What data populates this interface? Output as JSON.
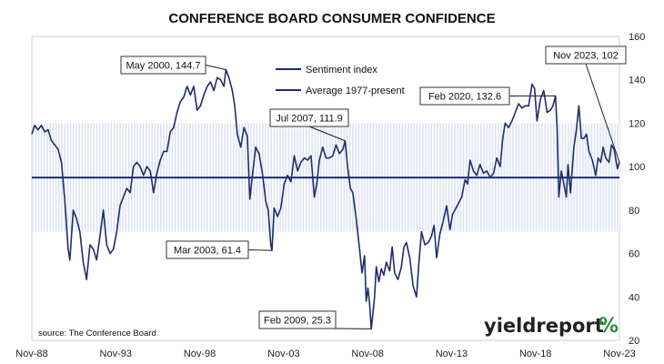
{
  "chart_data": {
    "type": "line",
    "title": "CONFERENCE BOARD CONSUMER CONFIDENCE",
    "xlabel": "",
    "ylabel": "",
    "ylim": [
      20,
      160
    ],
    "y_ticks": [
      "20",
      "40",
      "60",
      "80",
      "100",
      "120",
      "140",
      "160"
    ],
    "x_ticks": [
      "Nov-88",
      "Nov-93",
      "Nov-98",
      "Nov-03",
      "Nov-08",
      "Nov-13",
      "Nov-18",
      "Nov-23"
    ],
    "shaded_band": [
      70,
      120
    ],
    "grid": "horizontal shaded band 70-120",
    "legend_position": "top-center",
    "series": [
      {
        "name": "Sentiment index",
        "color": "#1f2d6e",
        "points": [
          [
            1988.83,
            115
          ],
          [
            1989.0,
            119
          ],
          [
            1989.2,
            117
          ],
          [
            1989.4,
            119
          ],
          [
            1989.6,
            116
          ],
          [
            1989.8,
            117
          ],
          [
            1990.0,
            112
          ],
          [
            1990.2,
            110
          ],
          [
            1990.4,
            108
          ],
          [
            1990.6,
            102
          ],
          [
            1990.8,
            84
          ],
          [
            1991.0,
            62
          ],
          [
            1991.1,
            57
          ],
          [
            1991.3,
            80
          ],
          [
            1991.5,
            76
          ],
          [
            1991.7,
            70
          ],
          [
            1991.9,
            56
          ],
          [
            1992.1,
            48
          ],
          [
            1992.3,
            64
          ],
          [
            1992.5,
            62
          ],
          [
            1992.7,
            57
          ],
          [
            1992.9,
            68
          ],
          [
            1993.1,
            80
          ],
          [
            1993.3,
            64
          ],
          [
            1993.5,
            60
          ],
          [
            1993.7,
            62
          ],
          [
            1993.9,
            70
          ],
          [
            1994.1,
            82
          ],
          [
            1994.3,
            86
          ],
          [
            1994.5,
            90
          ],
          [
            1994.7,
            88
          ],
          [
            1994.9,
            100
          ],
          [
            1995.1,
            102
          ],
          [
            1995.3,
            100
          ],
          [
            1995.5,
            96
          ],
          [
            1995.7,
            100
          ],
          [
            1995.9,
            98
          ],
          [
            1996.1,
            88
          ],
          [
            1996.3,
            97
          ],
          [
            1996.5,
            103
          ],
          [
            1996.7,
            107
          ],
          [
            1996.9,
            107
          ],
          [
            1997.1,
            116
          ],
          [
            1997.3,
            118
          ],
          [
            1997.5,
            125
          ],
          [
            1997.7,
            130
          ],
          [
            1997.9,
            132
          ],
          [
            1998.1,
            137
          ],
          [
            1998.3,
            133
          ],
          [
            1998.5,
            137
          ],
          [
            1998.7,
            126
          ],
          [
            1998.9,
            128
          ],
          [
            1999.1,
            133
          ],
          [
            1999.3,
            137
          ],
          [
            1999.5,
            139
          ],
          [
            1999.7,
            135
          ],
          [
            1999.9,
            141
          ],
          [
            2000.1,
            140
          ],
          [
            2000.3,
            137
          ],
          [
            2000.42,
            144.7
          ],
          [
            2000.6,
            141
          ],
          [
            2000.8,
            135
          ],
          [
            2000.95,
            128
          ],
          [
            2001.1,
            115
          ],
          [
            2001.3,
            109
          ],
          [
            2001.5,
            118
          ],
          [
            2001.7,
            114
          ],
          [
            2001.85,
            85
          ],
          [
            2002.0,
            96
          ],
          [
            2002.2,
            109
          ],
          [
            2002.4,
            106
          ],
          [
            2002.6,
            97
          ],
          [
            2002.8,
            84
          ],
          [
            2002.95,
            80
          ],
          [
            2003.1,
            64
          ],
          [
            2003.17,
            61.4
          ],
          [
            2003.3,
            81
          ],
          [
            2003.5,
            77
          ],
          [
            2003.7,
            81
          ],
          [
            2003.9,
            92
          ],
          [
            2004.1,
            96
          ],
          [
            2004.3,
            93
          ],
          [
            2004.5,
            105
          ],
          [
            2004.7,
            98
          ],
          [
            2004.9,
            102
          ],
          [
            2005.1,
            104
          ],
          [
            2005.3,
            103
          ],
          [
            2005.5,
            105
          ],
          [
            2005.7,
            86
          ],
          [
            2005.85,
            92
          ],
          [
            2006.0,
            103
          ],
          [
            2006.2,
            109
          ],
          [
            2006.4,
            104
          ],
          [
            2006.6,
            104
          ],
          [
            2006.8,
            105
          ],
          [
            2007.0,
            110
          ],
          [
            2007.2,
            106
          ],
          [
            2007.4,
            108
          ],
          [
            2007.54,
            111.9
          ],
          [
            2007.7,
            99
          ],
          [
            2007.85,
            90
          ],
          [
            2008.0,
            88
          ],
          [
            2008.2,
            76
          ],
          [
            2008.4,
            62
          ],
          [
            2008.55,
            51
          ],
          [
            2008.7,
            59
          ],
          [
            2008.8,
            38
          ],
          [
            2008.9,
            44
          ],
          [
            2009.0,
            37
          ],
          [
            2009.1,
            25.3
          ],
          [
            2009.3,
            40
          ],
          [
            2009.4,
            54
          ],
          [
            2009.55,
            47
          ],
          [
            2009.7,
            53
          ],
          [
            2009.85,
            50
          ],
          [
            2010.0,
            56
          ],
          [
            2010.2,
            52
          ],
          [
            2010.35,
            63
          ],
          [
            2010.5,
            51
          ],
          [
            2010.7,
            48
          ],
          [
            2010.9,
            54
          ],
          [
            2011.05,
            63
          ],
          [
            2011.2,
            65
          ],
          [
            2011.4,
            58
          ],
          [
            2011.6,
            45
          ],
          [
            2011.8,
            40
          ],
          [
            2011.95,
            56
          ],
          [
            2012.1,
            70
          ],
          [
            2012.3,
            64
          ],
          [
            2012.5,
            65
          ],
          [
            2012.7,
            68
          ],
          [
            2012.85,
            73
          ],
          [
            2013.0,
            58
          ],
          [
            2013.2,
            69
          ],
          [
            2013.4,
            75
          ],
          [
            2013.6,
            82
          ],
          [
            2013.8,
            71
          ],
          [
            2013.95,
            78
          ],
          [
            2014.1,
            80
          ],
          [
            2014.3,
            83
          ],
          [
            2014.5,
            86
          ],
          [
            2014.7,
            94
          ],
          [
            2014.85,
            92
          ],
          [
            2015.0,
            103
          ],
          [
            2015.2,
            98
          ],
          [
            2015.4,
            96
          ],
          [
            2015.6,
            101
          ],
          [
            2015.8,
            97
          ],
          [
            2016.0,
            98
          ],
          [
            2016.2,
            95
          ],
          [
            2016.4,
            97
          ],
          [
            2016.6,
            104
          ],
          [
            2016.8,
            100
          ],
          [
            2016.95,
            113
          ],
          [
            2017.1,
            120
          ],
          [
            2017.3,
            118
          ],
          [
            2017.5,
            121
          ],
          [
            2017.7,
            125
          ],
          [
            2017.9,
            129
          ],
          [
            2018.1,
            127
          ],
          [
            2018.3,
            128
          ],
          [
            2018.5,
            128
          ],
          [
            2018.7,
            138
          ],
          [
            2018.85,
            136
          ],
          [
            2019.0,
            121
          ],
          [
            2019.2,
            131
          ],
          [
            2019.4,
            135
          ],
          [
            2019.6,
            125
          ],
          [
            2019.8,
            126
          ],
          [
            2019.95,
            128
          ],
          [
            2020.1,
            132.6
          ],
          [
            2020.2,
            118
          ],
          [
            2020.3,
            86
          ],
          [
            2020.45,
            98
          ],
          [
            2020.6,
            92
          ],
          [
            2020.75,
            86
          ],
          [
            2020.85,
            101
          ],
          [
            2021.0,
            88
          ],
          [
            2021.2,
            109
          ],
          [
            2021.35,
            117
          ],
          [
            2021.5,
            128
          ],
          [
            2021.65,
            113
          ],
          [
            2021.8,
            113
          ],
          [
            2021.95,
            115
          ],
          [
            2022.1,
            107
          ],
          [
            2022.3,
            103
          ],
          [
            2022.5,
            96
          ],
          [
            2022.65,
            104
          ],
          [
            2022.8,
            102
          ],
          [
            2022.95,
            109
          ],
          [
            2023.1,
            104
          ],
          [
            2023.3,
            102
          ],
          [
            2023.45,
            110
          ],
          [
            2023.6,
            108
          ],
          [
            2023.8,
            99
          ],
          [
            2023.92,
            102
          ]
        ]
      },
      {
        "name": "Average 1977-present",
        "color": "#1f2d6e",
        "points": [
          [
            1988.83,
            95
          ],
          [
            2023.92,
            95
          ]
        ]
      }
    ],
    "annotations": [
      {
        "text": "May 2000, 144.7",
        "x": 2000.42,
        "y": 144.7
      },
      {
        "text": "Mar 2003, 61.4",
        "x": 2003.17,
        "y": 61.4
      },
      {
        "text": "Jul 2007, 111.9",
        "x": 2007.54,
        "y": 111.9
      },
      {
        "text": "Feb 2009, 25.3",
        "x": 2009.1,
        "y": 25.3
      },
      {
        "text": "Feb 2020, 132.6",
        "x": 2020.1,
        "y": 132.6
      },
      {
        "text": "Nov 2023, 102",
        "x": 2023.92,
        "y": 102
      }
    ],
    "source": "source: The Conference Board"
  },
  "logo": {
    "text_dark": "yieldreport",
    "text_accent": "%",
    "accent_colors": [
      "#2e8b3a",
      "#d62828"
    ]
  }
}
